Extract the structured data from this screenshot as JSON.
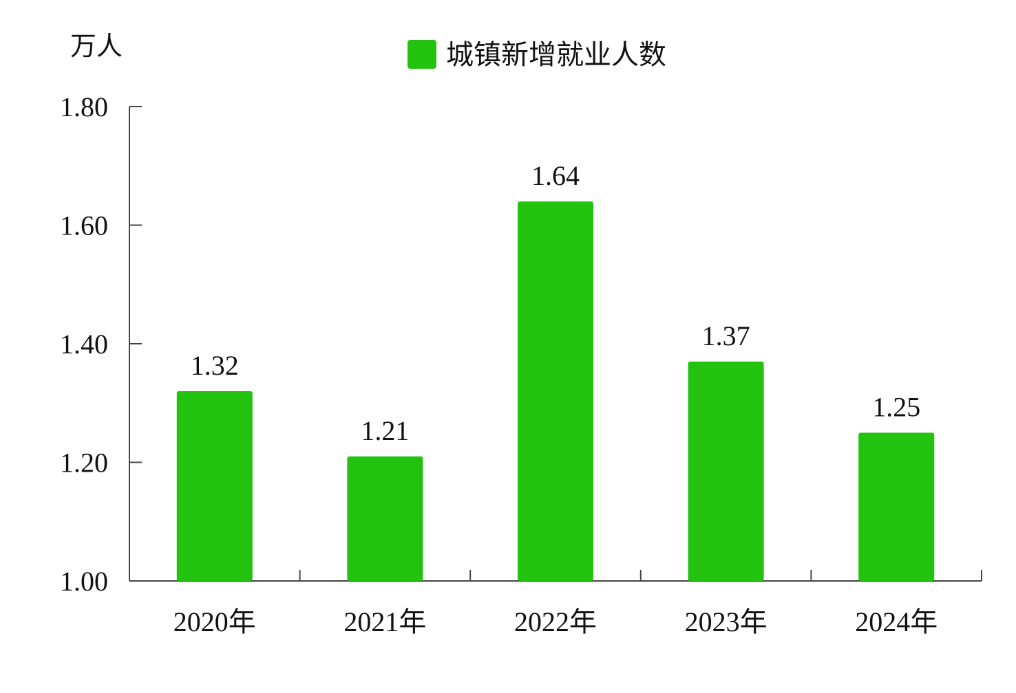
{
  "chart_data": {
    "type": "bar",
    "ylabel": "万人",
    "categories": [
      "2020年",
      "2021年",
      "2022年",
      "2023年",
      "2024年"
    ],
    "series": [
      {
        "name": "城镇新增就业人数",
        "values": [
          1.32,
          1.21,
          1.64,
          1.37,
          1.25
        ]
      }
    ],
    "data_labels": [
      "1.32",
      "1.21",
      "1.64",
      "1.37",
      "1.25"
    ],
    "ylim": [
      1.0,
      1.8
    ],
    "yticks": [
      "1.00",
      "1.20",
      "1.40",
      "1.60",
      "1.80"
    ],
    "legend_position": "top-center",
    "grid": false,
    "bar_color": "#22c20f"
  }
}
